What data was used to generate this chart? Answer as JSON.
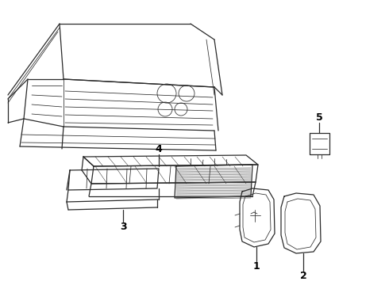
{
  "bg_color": "#ffffff",
  "line_color": "#2a2a2a",
  "label_color": "#000000",
  "label_fontsize": 9,
  "figsize": [
    4.9,
    3.6
  ],
  "dpi": 100
}
